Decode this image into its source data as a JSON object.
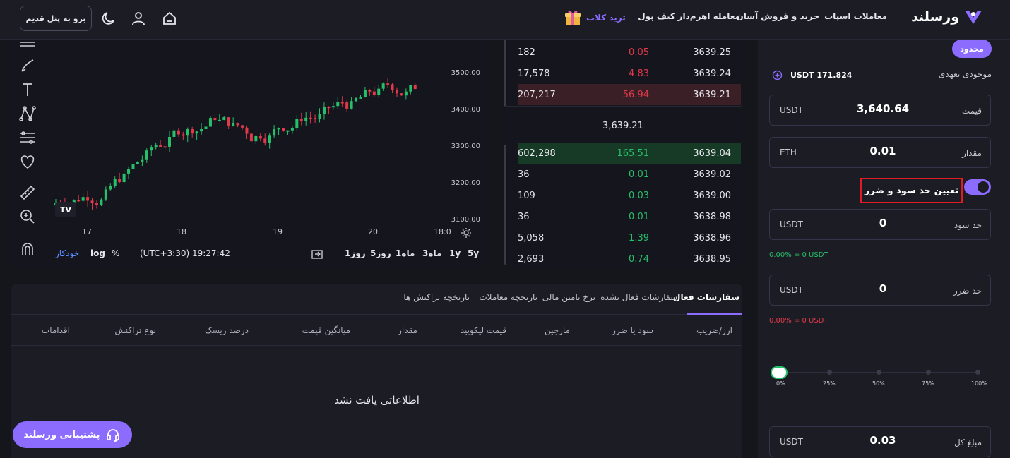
{
  "nav": {
    "logo": "ورسلند",
    "links": [
      "معاملات اسپات",
      "خرید و فروش آسان",
      "معامله اهرم‌دار",
      "کیف پول"
    ],
    "trade_club": "ترید کلاب",
    "old_panel": "برو به پنل قدیم"
  },
  "chart": {
    "price_ticks": [
      "3500.00",
      "3400.00",
      "3300.00",
      "3200.00",
      "3100.00"
    ],
    "time_ticks": [
      "17",
      "18",
      "19",
      "20",
      "18:0"
    ],
    "intervals": [
      "5y",
      "1y",
      "3ماه",
      "1ماه",
      "5روز",
      "1روز"
    ],
    "clock": "(UTC+3:30) 19:27:42",
    "options": [
      "%",
      "log",
      "خودکار"
    ],
    "tv_logo": "TV"
  },
  "orderbook": {
    "asks": [
      {
        "total": "182",
        "amount": "0.05",
        "price": "3639.25"
      },
      {
        "total": "17,578",
        "amount": "4.83",
        "price": "3639.24"
      },
      {
        "total": "207,217",
        "amount": "56.94",
        "price": "3639.21"
      }
    ],
    "mid_price": "3,639.21",
    "bids": [
      {
        "total": "602,298",
        "amount": "165.51",
        "price": "3639.04"
      },
      {
        "total": "36",
        "amount": "0.01",
        "price": "3639.02"
      },
      {
        "total": "109",
        "amount": "0.03",
        "price": "3639.00"
      },
      {
        "total": "36",
        "amount": "0.01",
        "price": "3638.98"
      },
      {
        "total": "5,058",
        "amount": "1.39",
        "price": "3638.96"
      },
      {
        "total": "2,693",
        "amount": "0.74",
        "price": "3638.95"
      }
    ]
  },
  "orders": {
    "tabs": [
      "سفارشات فعال",
      "سفارشات فعال نشده",
      "نرخ تامین مالی",
      "تاریخچه معاملات",
      "تاریخچه تراکنش ها"
    ],
    "columns": [
      "ارز/ضریب",
      "سود یا ضرر",
      "مارجین",
      "قیمت لیکویید",
      "مقدار",
      "میانگین قیمت",
      "درصد ریسک",
      "نوع تراکنش",
      "اقدامات"
    ],
    "empty": "اطلاعاتی یافت نشد"
  },
  "support": "پشتیبانی ورسلند",
  "form": {
    "badge": "محدود",
    "balance_label": "موجودی تعهدی",
    "balance_value": "USDT 171.824",
    "price": {
      "label": "قیمت",
      "value": "3,640.64",
      "unit": "USDT"
    },
    "amount": {
      "label": "مقدار",
      "value": "0.01",
      "unit": "ETH"
    },
    "tp_sl_toggle": "تعیین حد سود و ضرر",
    "take_profit": {
      "label": "حد سود",
      "value": "0",
      "unit": "USDT"
    },
    "tp_result": "0.00%  =  0 USDT",
    "stop_loss": {
      "label": "حد ضرر",
      "value": "0",
      "unit": "USDT"
    },
    "sl_result": "0.00%  =  0 USDT",
    "slider_labels": [
      "0%",
      "25%",
      "50%",
      "75%",
      "100%"
    ],
    "total": {
      "label": "مبلغ کل",
      "value": "0.03",
      "unit": "USDT"
    }
  },
  "colors": {
    "accent": "#8b6cff",
    "red": "#e0394a",
    "green": "#27c06a",
    "highlight": "#e01b24"
  }
}
